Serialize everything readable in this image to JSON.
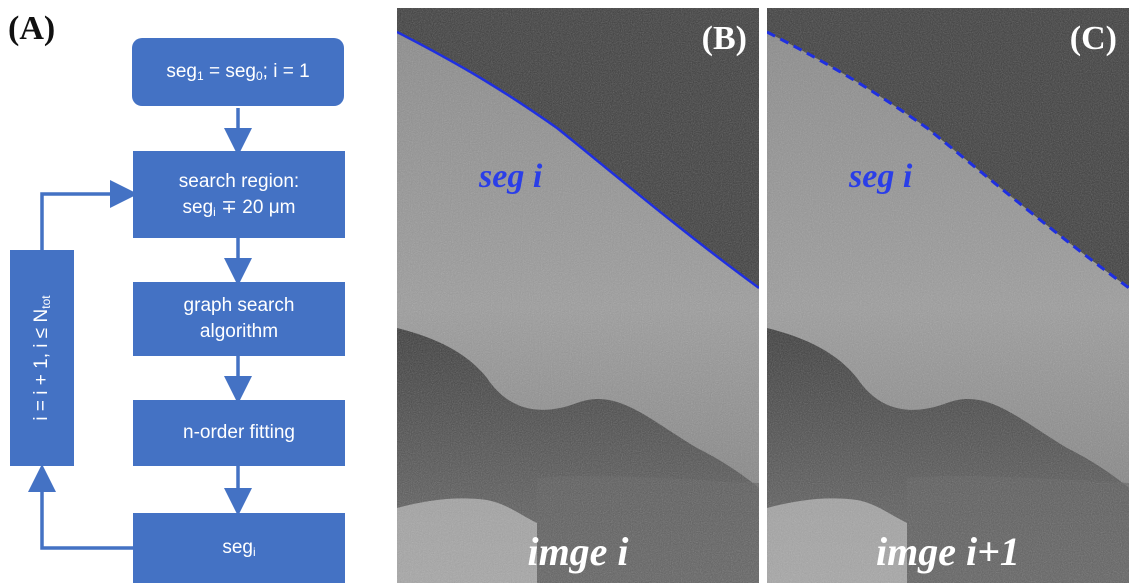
{
  "panel_a": {
    "letter": "(A)",
    "start_box": {
      "seg_a": "seg",
      "sub_a": "1",
      "eq": " = seg",
      "sub_b": "0",
      "rest": "; i = 1"
    },
    "search_box": {
      "line1": "search region:",
      "seg": "seg",
      "sub": "i",
      "rest": " ∓ 20 μm"
    },
    "graph_box": {
      "line1": "graph search",
      "line2": "algorithm"
    },
    "fit_box": {
      "text": "n-order fitting"
    },
    "seg_box": {
      "seg": "seg",
      "sub": "i"
    },
    "loop_box": {
      "text": "i = i + 1, i ≤ N",
      "sub": "tot"
    }
  },
  "panel_b": {
    "letter": "(B)",
    "seg_label": "seg i",
    "image_label": "imge i",
    "line_color": "#1f2fe0",
    "line_style": "solid"
  },
  "panel_c": {
    "letter": "(C)",
    "seg_label": "seg i",
    "image_label": "imge i+1",
    "line_color": "#1f2fe0",
    "line_style": "dashed"
  },
  "colors": {
    "box": "#4472c4",
    "arrow": "#4472c4"
  }
}
